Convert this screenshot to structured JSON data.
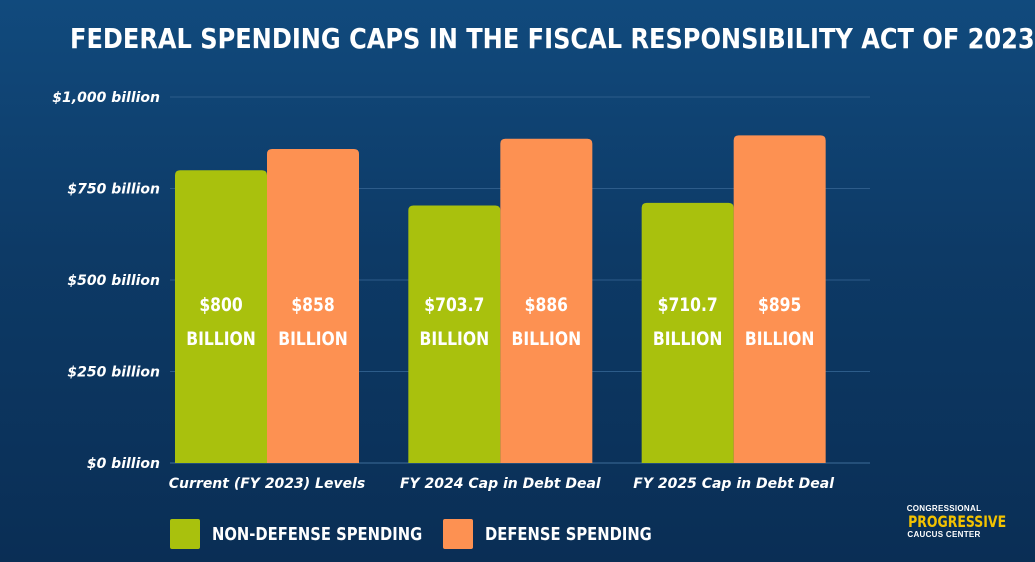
{
  "title": "FEDERAL SPENDING CAPS IN THE FISCAL RESPONSIBILITY ACT OF 2023",
  "colors": {
    "non_defense": "#a9c10d",
    "defense": "#fd9152",
    "gridline": "#2d5c8a",
    "logo_accent": "#f2c200"
  },
  "chart_data": {
    "type": "bar",
    "title": "FEDERAL SPENDING CAPS IN THE FISCAL RESPONSIBILITY ACT OF 2023",
    "categories": [
      "Current (FY 2023) Levels",
      "FY 2024 Cap in Debt Deal",
      "FY 2025 Cap in Debt Deal"
    ],
    "series": [
      {
        "name": "NON-DEFENSE SPENDING",
        "color": "#a9c10d",
        "values": [
          800,
          703.7,
          710.7
        ],
        "labels": [
          [
            "$800",
            "BILLION"
          ],
          [
            "$703.7",
            "BILLION"
          ],
          [
            "$710.7",
            "BILLION"
          ]
        ]
      },
      {
        "name": "DEFENSE SPENDING",
        "color": "#fd9152",
        "values": [
          858,
          886,
          895
        ],
        "labels": [
          [
            "$858",
            "BILLION"
          ],
          [
            "$886",
            "BILLION"
          ],
          [
            "$895",
            "BILLION"
          ]
        ]
      }
    ],
    "ylim": [
      0,
      1000
    ],
    "yticks": [
      0,
      250,
      500,
      750,
      1000
    ],
    "ytick_labels": [
      "$0 billion",
      "$250 billion",
      "$500 billion",
      "$750 billion",
      "$1,000 billion"
    ],
    "xlabel": "",
    "ylabel": "",
    "grid": true,
    "legend_position": "bottom"
  },
  "logo": {
    "line1": "CONGRESSIONAL",
    "line2": "PROGRESSIVE",
    "line3": "CAUCUS CENTER"
  }
}
